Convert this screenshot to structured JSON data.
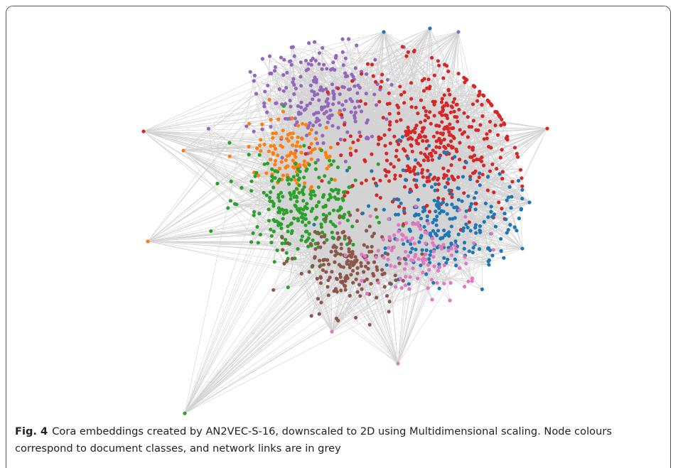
{
  "figure": {
    "label": "Fig. 4",
    "caption": "Cora embeddings created by AN2VEC-S-16, downscaled to 2D using Multidimensional scaling. Node colours correspond to document classes, and network links are in grey"
  }
}
